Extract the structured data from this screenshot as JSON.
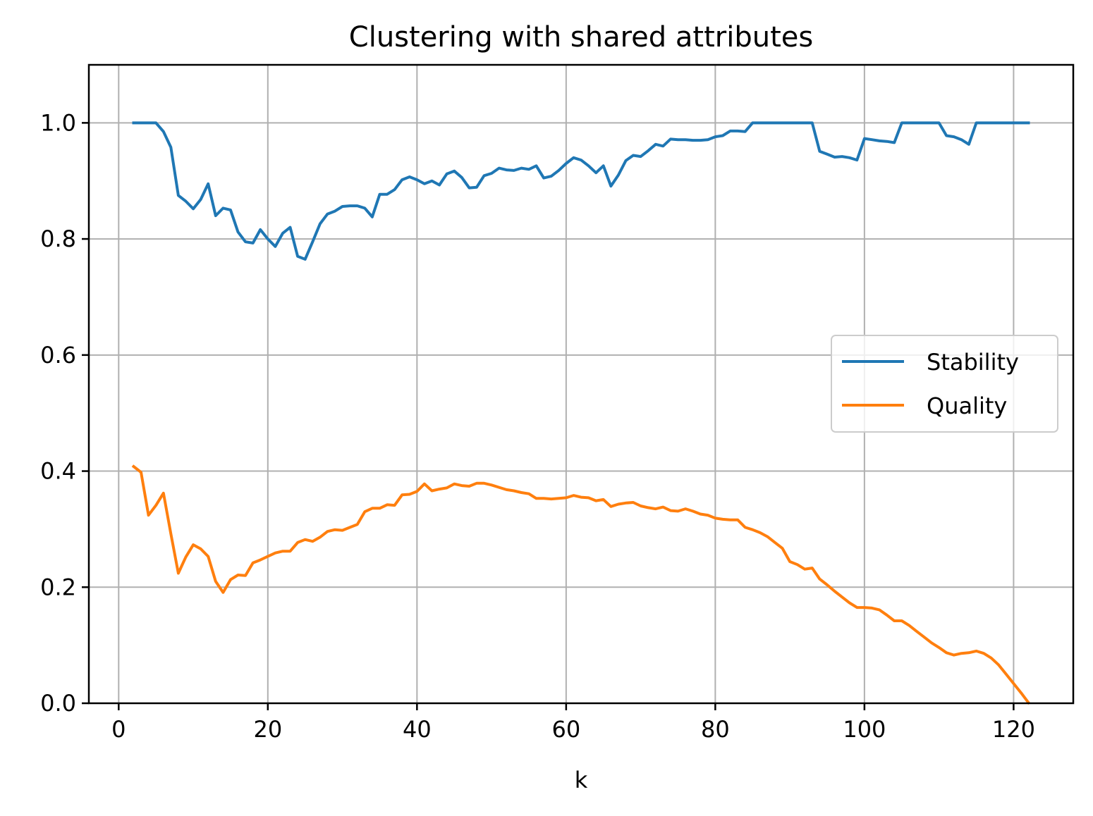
{
  "chart_data": {
    "type": "line",
    "title": "Clustering with shared attributes",
    "xlabel": "k",
    "ylabel": "",
    "xlim": [
      -4,
      128
    ],
    "ylim": [
      0.0,
      1.1
    ],
    "xticks": [
      0,
      20,
      40,
      60,
      80,
      100,
      120
    ],
    "xtick_labels": [
      "0",
      "20",
      "40",
      "60",
      "80",
      "100",
      "120"
    ],
    "yticks": [
      0.0,
      0.2,
      0.4,
      0.6,
      0.8,
      1.0
    ],
    "ytick_labels": [
      "0.0",
      "0.2",
      "0.4",
      "0.6",
      "0.8",
      "1.0"
    ],
    "grid": true,
    "legend_position": "center-right",
    "series": [
      {
        "name": "Stability",
        "color": "#1f77b4",
        "x": [
          2,
          3,
          4,
          5,
          6,
          7,
          8,
          9,
          10,
          11,
          12,
          13,
          14,
          15,
          16,
          17,
          18,
          19,
          20,
          21,
          22,
          23,
          24,
          25,
          26,
          27,
          28,
          29,
          30,
          31,
          32,
          33,
          34,
          35,
          36,
          37,
          38,
          39,
          40,
          41,
          42,
          43,
          44,
          45,
          46,
          47,
          48,
          49,
          50,
          51,
          52,
          53,
          54,
          55,
          56,
          57,
          58,
          59,
          60,
          61,
          62,
          63,
          64,
          65,
          66,
          67,
          68,
          69,
          70,
          71,
          72,
          73,
          74,
          75,
          76,
          77,
          78,
          79,
          80,
          81,
          82,
          83,
          84,
          85,
          86,
          87,
          88,
          89,
          90,
          91,
          92,
          93,
          94,
          95,
          96,
          97,
          98,
          99,
          100,
          101,
          102,
          103,
          104,
          105,
          106,
          107,
          108,
          109,
          110,
          111,
          112,
          113,
          114,
          115,
          116,
          117,
          118,
          119,
          120,
          121,
          122
        ],
        "values": [
          1.0,
          1.0,
          1.0,
          1.0,
          0.985,
          0.958,
          0.875,
          0.865,
          0.852,
          0.868,
          0.895,
          0.84,
          0.853,
          0.85,
          0.812,
          0.795,
          0.793,
          0.816,
          0.8,
          0.787,
          0.81,
          0.82,
          0.77,
          0.765,
          0.795,
          0.826,
          0.843,
          0.848,
          0.856,
          0.857,
          0.857,
          0.853,
          0.838,
          0.877,
          0.877,
          0.885,
          0.902,
          0.907,
          0.902,
          0.895,
          0.9,
          0.893,
          0.912,
          0.917,
          0.906,
          0.888,
          0.889,
          0.909,
          0.913,
          0.922,
          0.919,
          0.918,
          0.922,
          0.92,
          0.926,
          0.905,
          0.908,
          0.918,
          0.93,
          0.94,
          0.936,
          0.926,
          0.914,
          0.926,
          0.891,
          0.91,
          0.935,
          0.944,
          0.942,
          0.952,
          0.963,
          0.96,
          0.972,
          0.971,
          0.971,
          0.97,
          0.97,
          0.971,
          0.976,
          0.978,
          0.986,
          0.986,
          0.985,
          1.0,
          1.0,
          1.0,
          1.0,
          1.0,
          1.0,
          1.0,
          1.0,
          1.0,
          0.951,
          0.946,
          0.941,
          0.942,
          0.94,
          0.936,
          0.973,
          0.971,
          0.969,
          0.968,
          0.966,
          1.0,
          1.0,
          1.0,
          1.0,
          1.0,
          1.0,
          0.978,
          0.976,
          0.971,
          0.963,
          1.0,
          1.0,
          1.0,
          1.0,
          1.0,
          1.0,
          1.0,
          1.0
        ]
      },
      {
        "name": "Quality",
        "color": "#ff7f0e",
        "x": [
          2,
          3,
          4,
          5,
          6,
          7,
          8,
          9,
          10,
          11,
          12,
          13,
          14,
          15,
          16,
          17,
          18,
          19,
          20,
          21,
          22,
          23,
          24,
          25,
          26,
          27,
          28,
          29,
          30,
          31,
          32,
          33,
          34,
          35,
          36,
          37,
          38,
          39,
          40,
          41,
          42,
          43,
          44,
          45,
          46,
          47,
          48,
          49,
          50,
          51,
          52,
          53,
          54,
          55,
          56,
          57,
          58,
          59,
          60,
          61,
          62,
          63,
          64,
          65,
          66,
          67,
          68,
          69,
          70,
          71,
          72,
          73,
          74,
          75,
          76,
          77,
          78,
          79,
          80,
          81,
          82,
          83,
          84,
          85,
          86,
          87,
          88,
          89,
          90,
          91,
          92,
          93,
          94,
          95,
          96,
          97,
          98,
          99,
          100,
          101,
          102,
          103,
          104,
          105,
          106,
          107,
          108,
          109,
          110,
          111,
          112,
          113,
          114,
          115,
          116,
          117,
          118,
          119,
          120,
          121,
          122
        ],
        "values": [
          0.408,
          0.398,
          0.324,
          0.341,
          0.362,
          0.292,
          0.224,
          0.252,
          0.273,
          0.266,
          0.253,
          0.21,
          0.191,
          0.213,
          0.221,
          0.22,
          0.242,
          0.247,
          0.253,
          0.259,
          0.262,
          0.262,
          0.277,
          0.282,
          0.279,
          0.286,
          0.296,
          0.299,
          0.298,
          0.303,
          0.308,
          0.33,
          0.336,
          0.336,
          0.342,
          0.341,
          0.359,
          0.36,
          0.365,
          0.378,
          0.366,
          0.369,
          0.371,
          0.378,
          0.375,
          0.374,
          0.379,
          0.379,
          0.376,
          0.372,
          0.368,
          0.366,
          0.363,
          0.361,
          0.353,
          0.353,
          0.352,
          0.353,
          0.354,
          0.358,
          0.355,
          0.354,
          0.349,
          0.351,
          0.339,
          0.343,
          0.345,
          0.346,
          0.34,
          0.337,
          0.335,
          0.338,
          0.332,
          0.331,
          0.335,
          0.331,
          0.326,
          0.324,
          0.319,
          0.317,
          0.316,
          0.316,
          0.303,
          0.299,
          0.294,
          0.287,
          0.277,
          0.267,
          0.244,
          0.239,
          0.231,
          0.233,
          0.214,
          0.204,
          0.193,
          0.183,
          0.173,
          0.165,
          0.165,
          0.164,
          0.161,
          0.152,
          0.142,
          0.142,
          0.134,
          0.124,
          0.114,
          0.104,
          0.096,
          0.087,
          0.083,
          0.086,
          0.087,
          0.09,
          0.086,
          0.078,
          0.066,
          0.05,
          0.034,
          0.018,
          0.001
        ]
      }
    ]
  }
}
